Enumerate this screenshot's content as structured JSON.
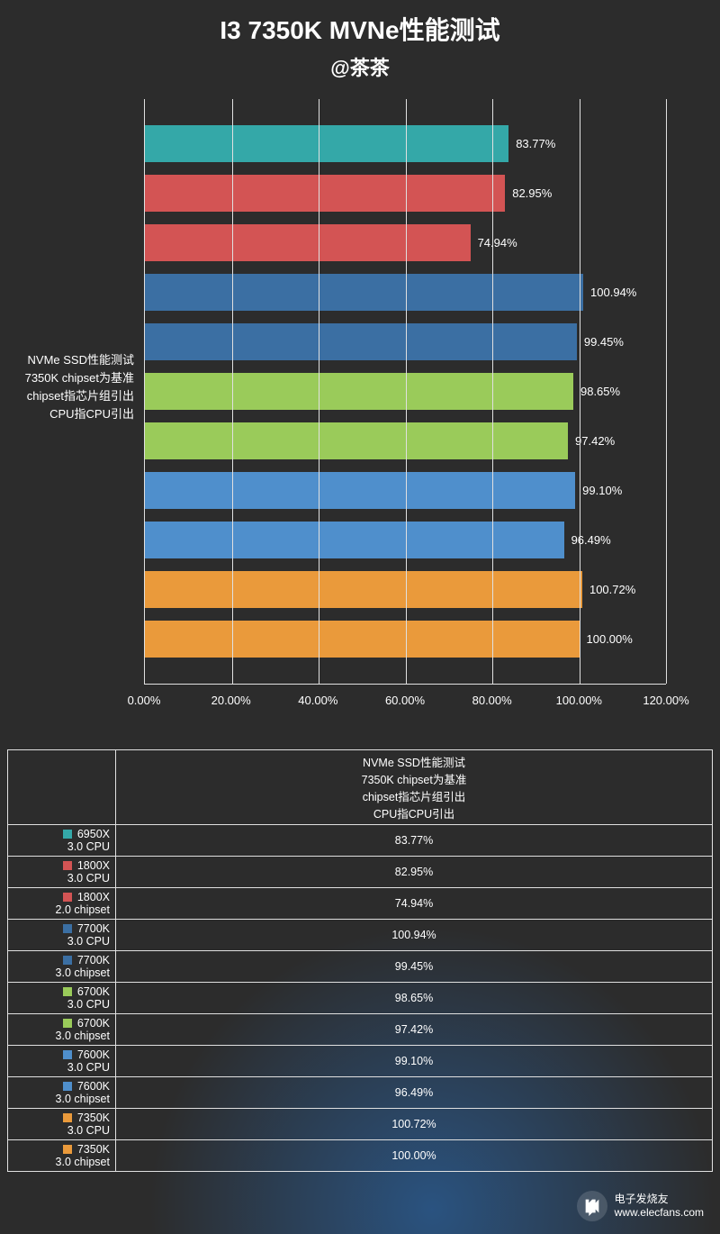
{
  "title": "I3 7350K MVNe性能测试",
  "subtitle": "@茶茶",
  "chart": {
    "type": "horizontal-bar",
    "background_color": "#2c2c2c",
    "grid_color": "#e0e0e0",
    "text_color": "#ffffff",
    "title_fontsize": 28,
    "subtitle_fontsize": 22,
    "label_fontsize": 13,
    "xaxis": {
      "min": 0,
      "max": 120,
      "tick_step": 20,
      "ticks": [
        "0.00%",
        "20.00%",
        "40.00%",
        "60.00%",
        "80.00%",
        "100.00%",
        "120.00%"
      ]
    },
    "ylabel_lines": [
      "NVMe SSD性能测试",
      "7350K chipset为基准",
      "chipset指芯片组引出",
      "CPU指CPU引出"
    ],
    "bars": [
      {
        "name": "6950X",
        "sub": "3.0 CPU",
        "value": 83.77,
        "label": "83.77%",
        "color": "#34a8a8"
      },
      {
        "name": "1800X",
        "sub": "3.0 CPU",
        "value": 82.95,
        "label": "82.95%",
        "color": "#d35454"
      },
      {
        "name": "1800X",
        "sub": "2.0 chipset",
        "value": 74.94,
        "label": "74.94%",
        "color": "#d35454"
      },
      {
        "name": "7700K",
        "sub": "3.0 CPU",
        "value": 100.94,
        "label": "100.94%",
        "color": "#3b6fa3"
      },
      {
        "name": "7700K",
        "sub": "3.0 chipset",
        "value": 99.45,
        "label": "99.45%",
        "color": "#3b6fa3"
      },
      {
        "name": "6700K",
        "sub": "3.0 CPU",
        "value": 98.65,
        "label": "98.65%",
        "color": "#9acb5a"
      },
      {
        "name": "6700K",
        "sub": "3.0 chipset",
        "value": 97.42,
        "label": "97.42%",
        "color": "#9acb5a"
      },
      {
        "name": "7600K",
        "sub": "3.0 CPU",
        "value": 99.1,
        "label": "99.10%",
        "color": "#4f8fcc"
      },
      {
        "name": "7600K",
        "sub": "3.0 chipset",
        "value": 96.49,
        "label": "96.49%",
        "color": "#4f8fcc"
      },
      {
        "name": "7350K",
        "sub": "3.0 CPU",
        "value": 100.72,
        "label": "100.72%",
        "color": "#ea9a3b"
      },
      {
        "name": "7350K",
        "sub": "3.0 chipset",
        "value": 100.0,
        "label": "100.00%",
        "color": "#ea9a3b"
      }
    ]
  },
  "table": {
    "header_lines": [
      "NVMe SSD性能测试",
      "7350K chipset为基准",
      "chipset指芯片组引出",
      "CPU指CPU引出"
    ]
  },
  "watermark": {
    "line1": "电子发烧友",
    "line2": "www.elecfans.com"
  }
}
